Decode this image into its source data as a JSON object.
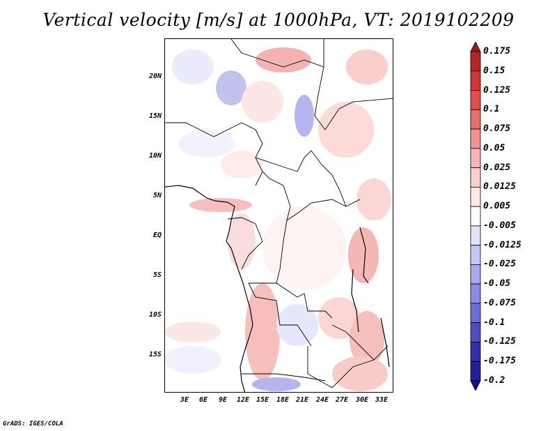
{
  "title": "Vertical velocity [m/s] at 1000hPa, VT: 2019102209",
  "credit": "GrADS: IGES/COLA",
  "lat_labels": [
    "20N",
    "15N",
    "10N",
    "5N",
    "EQ",
    "5S",
    "10S",
    "15S"
  ],
  "lon_labels": [
    "3E",
    "6E",
    "9E",
    "12E",
    "15E",
    "18E",
    "21E",
    "24E",
    "27E",
    "30E",
    "33E"
  ],
  "colorbar": {
    "labels": [
      "0.175",
      "0.15",
      "0.125",
      "0.1",
      "0.075",
      "0.05",
      "0.025",
      "0.0125",
      "0.005",
      "-0.005",
      "-0.0125",
      "-0.025",
      "-0.05",
      "-0.075",
      "-0.1",
      "-0.125",
      "-0.175",
      "-0.2"
    ],
    "colors": [
      "#9b1c1c",
      "#b82525",
      "#cf3636",
      "#e0504a",
      "#e6706a",
      "#ee9590",
      "#f6b5b1",
      "#fbd0cd",
      "#fde8e6",
      "#ffffff",
      "#e3e3fb",
      "#c6c6f4",
      "#a8a8ec",
      "#8b8be4",
      "#6d6dd6",
      "#4d4dc4",
      "#3232b0",
      "#20209b",
      "#13138a"
    ]
  }
}
